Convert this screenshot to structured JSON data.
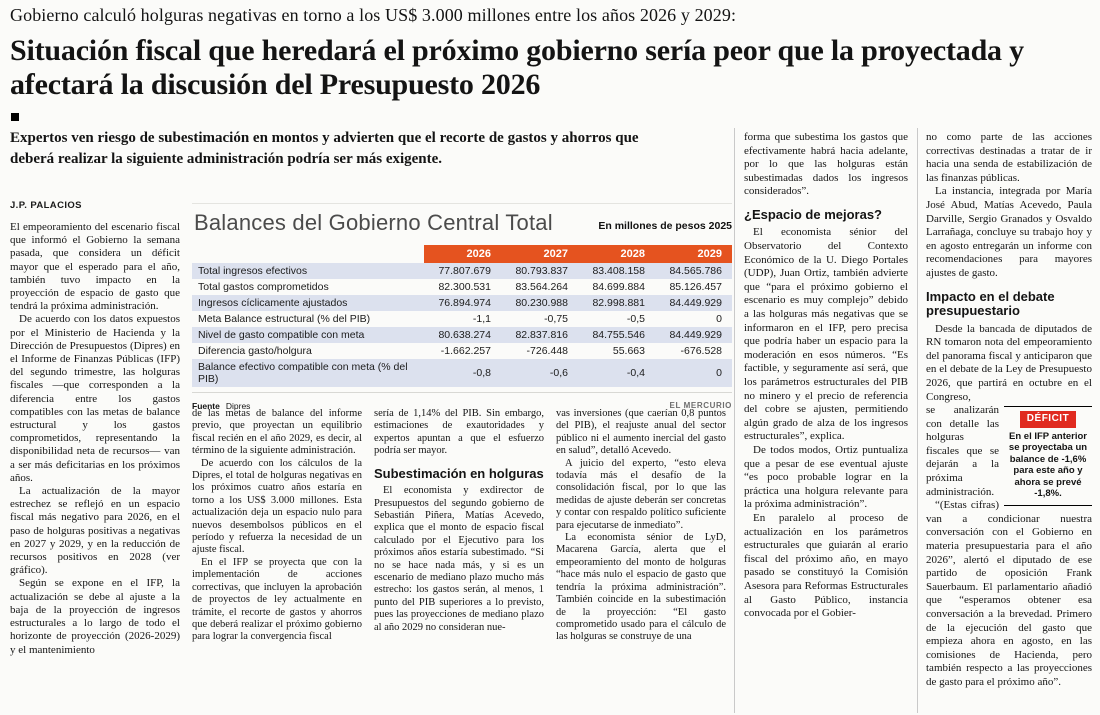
{
  "kicker": "Gobierno calculó holguras negativas en torno a los US$ 3.000 millones entre los años 2026 y 2029:",
  "headline": "Situación fiscal que heredará el próximo gobierno sería peor que la proyectada y afectará la discusión del Presupuesto 2026",
  "deck": "Expertos ven riesgo de subestimación en montos y advierten que el recorte de gastos y ahorros que deberá realizar la siguiente administración podría ser más exigente.",
  "byline": "J.P. PALACIOS",
  "colors": {
    "table_header_orange": "#e5531f",
    "row_shade": "#dce1ee",
    "deficit_red": "#e02b20"
  },
  "chart_data": {
    "type": "table",
    "title": "Balances del Gobierno Central Total",
    "unit_note": "En millones de pesos 2025",
    "col_headers": [
      "2026",
      "2027",
      "2028",
      "2029"
    ],
    "rows": [
      {
        "label": "Total ingresos efectivos",
        "values": [
          "77.807.679",
          "80.793.837",
          "83.408.158",
          "84.565.786"
        ]
      },
      {
        "label": "Total gastos comprometidos",
        "values": [
          "82.300.531",
          "83.564.264",
          "84.699.884",
          "85.126.457"
        ]
      },
      {
        "label": "Ingresos cíclicamente ajustados",
        "values": [
          "76.894.974",
          "80.230.988",
          "82.998.881",
          "84.449.929"
        ]
      },
      {
        "label": "Meta Balance estructural (% del PIB)",
        "values": [
          "-1,1",
          "-0,75",
          "-0,5",
          "0"
        ]
      },
      {
        "label": "Nivel de gasto compatible con meta",
        "values": [
          "80.638.274",
          "82.837.816",
          "84.755.546",
          "84.449.929"
        ]
      },
      {
        "label": "Diferencia gasto/holgura",
        "values": [
          "-1.662.257",
          "-726.448",
          "55.663",
          "-676.528"
        ]
      },
      {
        "label": "Balance efectivo compatible con meta (% del PIB)",
        "values": [
          "-0,8",
          "-0,6",
          "-0,4",
          "0"
        ]
      }
    ],
    "source_label": "Fuente",
    "source": "Dipres",
    "credit": "EL MERCURIO"
  },
  "deficit_box": {
    "label": "DÉFICIT",
    "text": "En el IFP anterior se proyectaba un balance de -1,6% para este año y ahora se prevé -1,8%."
  },
  "columns": [
    {
      "blocks": [
        {
          "type": "p",
          "indent": false,
          "text": "El empeoramiento del escenario fiscal que informó el Gobierno la semana pasada, que considera un déficit mayor que el esperado para el año, también tuvo impacto en la proyección de espacio de gasto que tendrá la próxima administración."
        },
        {
          "type": "p",
          "indent": true,
          "text": "De acuerdo con los datos expuestos por el Ministerio de Hacienda y la Dirección de Presupuestos (Dipres) en el Informe de Finanzas Públicas (IFP) del segundo trimestre, las holguras fiscales —que corresponden a la diferencia entre los gastos compatibles con las metas de balance estructural y los gastos comprometidos, representando la disponibilidad neta de recursos— van a ser más deficitarias en los próximos años."
        },
        {
          "type": "p",
          "indent": true,
          "text": "La actualización de la mayor estrechez se reflejó en un espacio fiscal más negativo para 2026, en el paso de holguras positivas a negativas en 2027 y 2029, y en la reducción de recursos positivos en 2028 (ver gráfico)."
        },
        {
          "type": "p",
          "indent": true,
          "text": "Según se expone en el IFP, la actualización se debe al ajuste a la baja de la proyección de ingresos estructurales a lo largo de todo el horizonte de proyección (2026-2029) y el mantenimiento"
        }
      ]
    },
    {
      "blocks": [
        {
          "type": "p",
          "indent": false,
          "text": "de las metas de balance del informe previo, que proyectan un equilibrio fiscal recién en el año 2029, es decir, al término de la siguiente administración."
        },
        {
          "type": "p",
          "indent": true,
          "text": "De acuerdo con los cálculos de la Dipres, el total de holguras negativas en los próximos cuatro años estaría en torno a los US$ 3.000 millones. Esta actualización deja un espacio nulo para nuevos desembolsos públicos en el período y refuerza la necesidad de un ajuste fiscal."
        },
        {
          "type": "p",
          "indent": true,
          "text": "En el IFP se proyecta que con la implementación de acciones correctivas, que incluyen la aprobación de proyectos de ley actualmente en trámite, el recorte de gastos y ahorros que deberá realizar el próximo gobierno para lograr la convergencia fiscal"
        }
      ]
    },
    {
      "blocks": [
        {
          "type": "p",
          "indent": false,
          "text": "sería de 1,14% del PIB. Sin embargo, estimaciones de exautoridades y expertos apuntan a que el esfuerzo podría ser mayor."
        },
        {
          "type": "h",
          "text": "Subestimación en holguras"
        },
        {
          "type": "p",
          "indent": true,
          "text": "El economista y exdirector de Presupuestos del segundo gobierno de Sebastián Piñera, Matías Acevedo, explica que el monto de espacio fiscal calculado por el Ejecutivo para los próximos años estaría subestimado. “Si no se hace nada más, y si es un escenario de mediano plazo mucho más estrecho: los gastos serán, al menos, 1 punto del PIB superiores a lo previsto, pues las proyecciones de mediano plazo al año 2029 no consideran nue-"
        }
      ]
    },
    {
      "blocks": [
        {
          "type": "p",
          "indent": false,
          "text": "vas inversiones (que caerían 0,8 puntos del PIB), el reajuste anual del sector público ni el aumento inercial del gasto en salud”, detalló Acevedo."
        },
        {
          "type": "p",
          "indent": true,
          "text": "A juicio del experto, “esto eleva todavía más el desafío de la consolidación fiscal, por lo que las medidas de ajuste deberán ser concretas y contar con respaldo político suficiente para ejecutarse de inmediato”."
        },
        {
          "type": "p",
          "indent": true,
          "text": "La economista sénior de LyD, Macarena García, alerta que el empeoramiento del monto de holguras “hace más nulo el espacio de gasto que tendría la próxima administración”. También coincide en la subestimación de la proyección: “El gasto comprometido usado para el cálculo de las holguras se construye de una"
        }
      ]
    },
    {
      "blocks": [
        {
          "type": "p",
          "indent": false,
          "text": "forma que subestima los gastos que efectivamente habrá hacia adelante, por lo que las holguras están subestimadas dados los ingresos considerados”."
        },
        {
          "type": "h",
          "text": "¿Espacio de mejoras?"
        },
        {
          "type": "p",
          "indent": true,
          "text": "El economista sénior del Observatorio del Contexto Económico de la U. Diego Portales (UDP), Juan Ortiz, también advierte que “para el próximo gobierno el escenario es muy complejo” debido a las holguras más negativas que se informaron en el IFP, pero precisa que podría haber un espacio para la moderación en esos números. “Es factible, y seguramente así será, que los parámetros estructurales del PIB no minero y el precio de referencia del cobre se ajusten, permitiendo algún grado de alza de los ingresos estructurales”, explica."
        },
        {
          "type": "p",
          "indent": true,
          "text": "De todos modos, Ortiz puntualiza que a pesar de ese eventual ajuste “es poco probable lograr en la práctica una holgura relevante para la próxima administración”."
        },
        {
          "type": "p",
          "indent": true,
          "text": "En paralelo al proceso de actualización en los parámetros estructurales que guiarán al erario fiscal del próximo año, en mayo pasado se constituyó la Comisión Asesora para Reformas Estructurales al Gasto Público, instancia convocada por el Gobier-"
        }
      ]
    },
    {
      "blocks": [
        {
          "type": "p",
          "indent": false,
          "text": "no como parte de las acciones correctivas destinadas a tratar de ir hacia una senda de estabilización de las finanzas públicas."
        },
        {
          "type": "p",
          "indent": true,
          "text": "La instancia, integrada por María José Abud, Matías Acevedo, Paula Darville, Sergio Granados y Osvaldo Larrañaga, concluye su trabajo hoy y en agosto entregarán un informe con recomendaciones para mayores ajustes de gasto."
        },
        {
          "type": "h",
          "text": "Impacto en el debate presupuestario"
        },
        {
          "type": "p",
          "indent": true,
          "text": "Desde la bancada de diputados de RN tomaron nota del empeoramiento del panorama fiscal y anticiparon que en el debate de la Ley de Presupuesto 2026, que partirá en octubre en el Congreso,"
        },
        {
          "type": "deficit"
        },
        {
          "type": "p",
          "indent": false,
          "text": "se analizarán con detalle las holguras fiscales que se dejarán a la próxima administración."
        },
        {
          "type": "p",
          "indent": true,
          "text": "“(Estas cifras) van a condicionar nuestra conversación con el Gobierno en materia presupuestaria para el año 2026”, alertó el diputado de ese partido de oposición Frank Sauerbaum. El parlamentario añadió que “esperamos obtener esa conversación a la brevedad. Primero de la ejecución del gasto que empieza ahora en agosto, en las comisiones de Hacienda, pero también respecto a las proyecciones de gasto para el próximo año”."
        }
      ]
    }
  ]
}
